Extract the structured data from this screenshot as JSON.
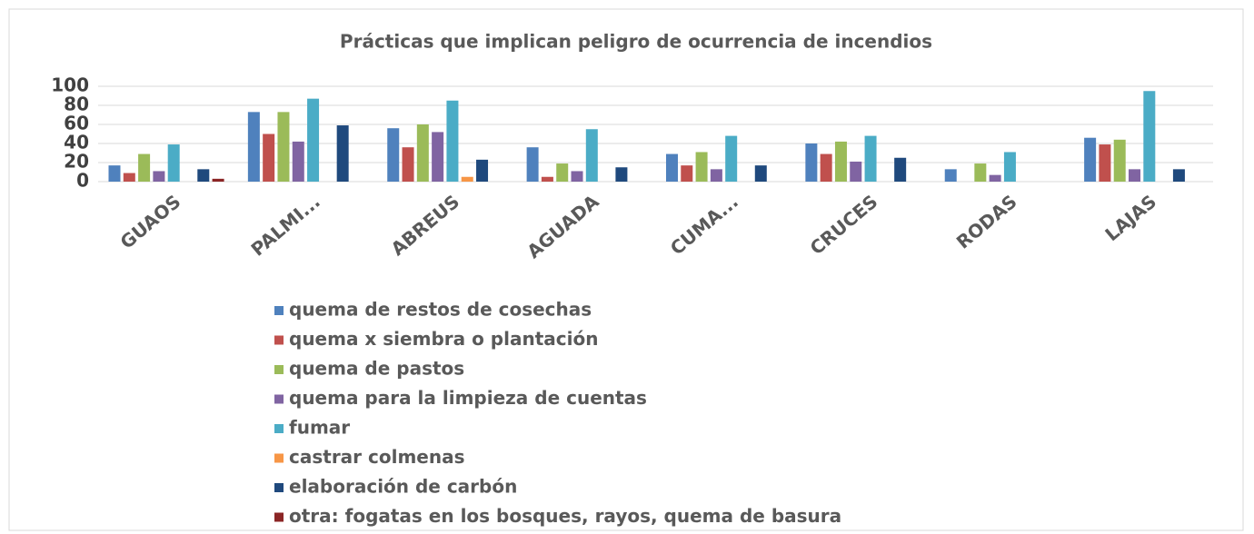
{
  "chart_data": {
    "type": "bar",
    "title": "Prácticas que implican peligro de ocurrencia de incendios",
    "categories": [
      "GUAOS",
      "PALMI...",
      "ABREUS",
      "AGUADA",
      "CUMA...",
      "CRUCES",
      "RODAS",
      "LAJAS"
    ],
    "series": [
      {
        "name": "quema de restos de cosechas",
        "color": "#4f81bd",
        "values": [
          17,
          73,
          56,
          36,
          29,
          40,
          13,
          46
        ]
      },
      {
        "name": "quema x siembra o plantación",
        "color": "#c0504d",
        "values": [
          9,
          50,
          36,
          5,
          17,
          29,
          0,
          39
        ]
      },
      {
        "name": "quema de pastos",
        "color": "#9bbb59",
        "values": [
          29,
          73,
          60,
          19,
          31,
          42,
          19,
          44
        ]
      },
      {
        "name": "quema para la limpieza de cuentas",
        "color": "#8064a2",
        "values": [
          11,
          42,
          52,
          11,
          13,
          21,
          7,
          13
        ]
      },
      {
        "name": "fumar",
        "color": "#4bacc6",
        "values": [
          39,
          87,
          85,
          55,
          48,
          48,
          31,
          95
        ]
      },
      {
        "name": "castrar colmenas",
        "color": "#f79646",
        "values": [
          0,
          0,
          5,
          0,
          0,
          0,
          0,
          0
        ]
      },
      {
        "name": "elaboración de carbón",
        "color": "#1f497d",
        "values": [
          13,
          59,
          23,
          15,
          17,
          25,
          0,
          13
        ]
      },
      {
        "name": "otra: fogatas en los bosques, rayos, quema de basura",
        "color": "#8b2525",
        "values": [
          3,
          0,
          0,
          0,
          0,
          0,
          0,
          0
        ]
      }
    ],
    "ylim": [
      0,
      100
    ],
    "yticks": [
      0,
      20,
      40,
      60,
      80,
      100
    ],
    "grid": true,
    "legend": "bottom"
  }
}
